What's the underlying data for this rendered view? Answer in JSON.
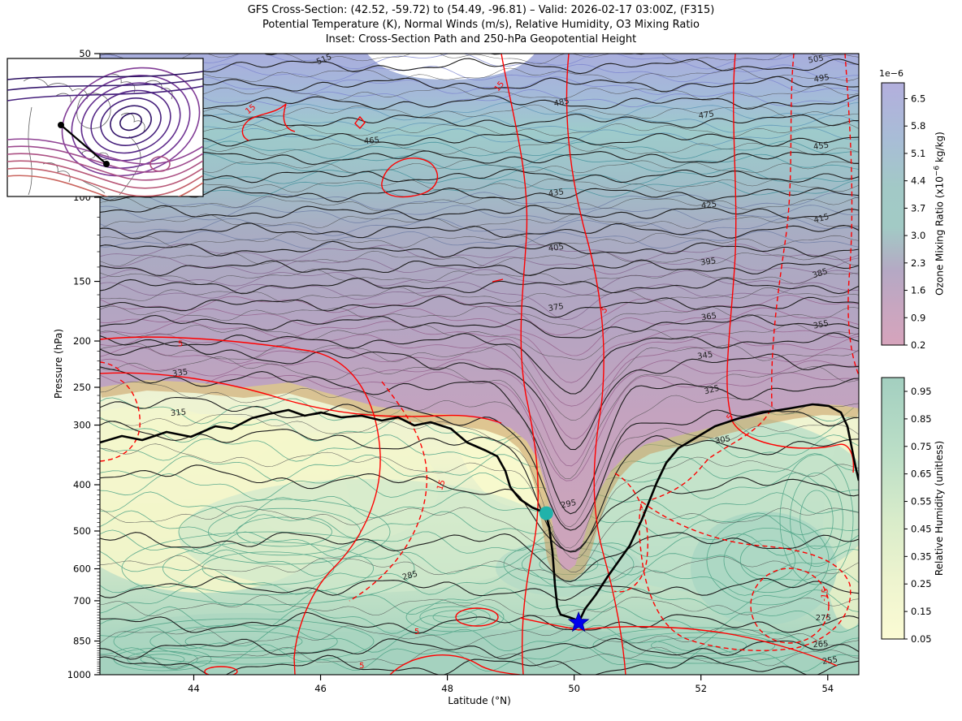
{
  "header": {
    "title_line1": "GFS Cross-Section: (42.52, -59.72) to (54.49, -96.81) – Valid: 2026-02-17 03:00Z, (F315)",
    "title_line2": "Potential Temperature (K), Normal Winds (m/s), Relative Humidity, O3 Mixing Ratio",
    "title_line3": "Inset: Cross-Section Path and 250-hPa Geopotential Height"
  },
  "axes": {
    "x_label": "Latitude (°N)",
    "y_label": "Pressure (hPa)",
    "x_ticks": [
      44,
      46,
      48,
      50,
      52,
      54
    ],
    "y_ticks": [
      50,
      100,
      150,
      200,
      250,
      300,
      400,
      500,
      600,
      700,
      850,
      1000
    ]
  },
  "colorbars": {
    "ozone": {
      "offset_label": "1e−6",
      "ticks": [
        "6.5",
        "5.8",
        "5.1",
        "4.4",
        "3.7",
        "3.0",
        "2.3",
        "1.6",
        "0.9",
        "0.2"
      ],
      "label_prefix": "Ozone Mixing Ratio (x10",
      "label_sup": "−6",
      "label_suffix": " kg/kg)",
      "color_top": "#b3afdd",
      "color_mid": "#a2cac5",
      "color_bottom": "#d6a4bc"
    },
    "rh": {
      "ticks": [
        "0.95",
        "0.85",
        "0.75",
        "0.65",
        "0.55",
        "0.45",
        "0.35",
        "0.25",
        "0.15",
        "0.05"
      ],
      "label": "Relative Humidity (unitless)",
      "color_top": "#a3cfc0",
      "color_bottom": "#fbfbd4"
    }
  },
  "chart_data": {
    "type": "contour-cross-section",
    "x_axis": {
      "label": "Latitude (°N)",
      "range": [
        42.52,
        54.49
      ],
      "ticks": [
        44,
        46,
        48,
        50,
        52,
        54
      ]
    },
    "y_axis": {
      "label": "Pressure (hPa)",
      "scale": "log",
      "range": [
        50,
        1000
      ],
      "ticks": [
        50,
        100,
        150,
        200,
        250,
        300,
        400,
        500,
        600,
        700,
        850,
        1000
      ]
    },
    "cross_section_path": {
      "start_lat_lon": [
        42.52,
        -59.72
      ],
      "end_lat_lon": [
        54.49,
        -96.81
      ]
    },
    "potential_temperature_K": {
      "units": "K",
      "contour_interval": 10,
      "line_color": "#1c1c1c",
      "labels": [
        {
          "value": 515,
          "lat": 46.07,
          "p": 52,
          "rot": -22
        },
        {
          "value": 505,
          "lat": 53.82,
          "p": 52,
          "rot": -10
        },
        {
          "value": 495,
          "lat": 53.91,
          "p": 57,
          "rot": -10
        },
        {
          "value": 485,
          "lat": 49.81,
          "p": 64,
          "rot": -12
        },
        {
          "value": 475,
          "lat": 52.09,
          "p": 68,
          "rot": -8
        },
        {
          "value": 465,
          "lat": 46.81,
          "p": 77,
          "rot": -5
        },
        {
          "value": 455,
          "lat": 53.9,
          "p": 79,
          "rot": -8
        },
        {
          "value": 435,
          "lat": 49.72,
          "p": 99,
          "rot": -8
        },
        {
          "value": 425,
          "lat": 52.13,
          "p": 105,
          "rot": -6
        },
        {
          "value": 415,
          "lat": 53.91,
          "p": 112,
          "rot": -15
        },
        {
          "value": 405,
          "lat": 49.72,
          "p": 129,
          "rot": -8
        },
        {
          "value": 395,
          "lat": 52.12,
          "p": 138,
          "rot": -8
        },
        {
          "value": 385,
          "lat": 53.89,
          "p": 146,
          "rot": -18
        },
        {
          "value": 375,
          "lat": 49.72,
          "p": 172,
          "rot": -10
        },
        {
          "value": 365,
          "lat": 52.13,
          "p": 180,
          "rot": -8
        },
        {
          "value": 355,
          "lat": 53.9,
          "p": 187,
          "rot": -12
        },
        {
          "value": 345,
          "lat": 52.07,
          "p": 217,
          "rot": -8
        },
        {
          "value": 335,
          "lat": 43.79,
          "p": 236,
          "rot": -8
        },
        {
          "value": 325,
          "lat": 52.18,
          "p": 256,
          "rot": -15
        },
        {
          "value": 315,
          "lat": 43.76,
          "p": 286,
          "rot": -5
        },
        {
          "value": 305,
          "lat": 52.35,
          "p": 326,
          "rot": -10
        },
        {
          "value": 295,
          "lat": 49.92,
          "p": 444,
          "rot": -12
        },
        {
          "value": 285,
          "lat": 47.42,
          "p": 627,
          "rot": -15
        },
        {
          "value": 275,
          "lat": 53.93,
          "p": 769,
          "rot": 0
        },
        {
          "value": 265,
          "lat": 53.89,
          "p": 874,
          "rot": -5
        },
        {
          "value": 255,
          "lat": 54.04,
          "p": 945,
          "rot": -8
        }
      ]
    },
    "normal_wind_ms": {
      "units": "m/s",
      "line_color": "#ff0000",
      "negative_style": "dashed",
      "labels": [
        {
          "value": "15",
          "lat": 44.92,
          "p": 66,
          "rot": -38
        },
        {
          "value": "15",
          "lat": 48.85,
          "p": 59,
          "rot": -52
        },
        {
          "value": "5",
          "lat": 43.79,
          "p": 205,
          "rot": 0
        },
        {
          "value": "5",
          "lat": 50.5,
          "p": 174,
          "rot": -35
        },
        {
          "value": "5",
          "lat": 52.49,
          "p": 291,
          "rot": -55
        },
        {
          "value": "15",
          "lat": 47.94,
          "p": 402,
          "rot": -72
        },
        {
          "value": "-15",
          "lat": 53.99,
          "p": 681,
          "rot": -84
        },
        {
          "value": "5",
          "lat": 47.52,
          "p": 822,
          "rot": 0
        },
        {
          "value": "5",
          "lat": 46.65,
          "p": 969,
          "rot": 0
        }
      ]
    },
    "ozone_shading": {
      "colorbar_ticks": [
        6.5,
        5.8,
        5.1,
        4.4,
        3.7,
        3.0,
        2.3,
        1.6,
        0.9,
        0.2
      ],
      "scale_factor": "1e−6",
      "units": "kg/kg"
    },
    "rh_shading": {
      "colorbar_ticks": [
        0.95,
        0.85,
        0.75,
        0.65,
        0.55,
        0.45,
        0.35,
        0.25,
        0.15,
        0.05
      ],
      "units": "unitless"
    },
    "markers": [
      {
        "type": "circle",
        "color": "#20b2aa",
        "lat": 49.56,
        "p": 459
      },
      {
        "type": "star",
        "color": "#0000ee",
        "lat": 50.07,
        "p": 778
      }
    ]
  }
}
